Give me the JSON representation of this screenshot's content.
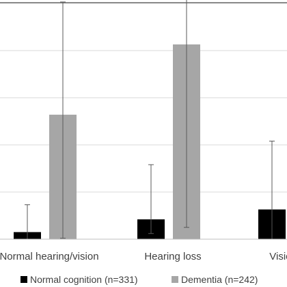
{
  "chart_data": {
    "type": "bar",
    "categories": [
      "Normal hearing/vision",
      "Hearing loss",
      "Vision loss"
    ],
    "series": [
      {
        "name": "Normal cognition (n=331)",
        "color": "#000000",
        "values": [
          0.15,
          0.42,
          0.63
        ],
        "error_low": [
          0.0,
          0.12,
          0.0
        ],
        "error_high": [
          0.73,
          1.58,
          2.08
        ]
      },
      {
        "name": "Dementia (n=242)",
        "color": "#a6a6a6",
        "values": [
          2.64,
          4.13,
          null
        ],
        "error_low": [
          0.02,
          0.25,
          null
        ],
        "error_high": [
          5.03,
          7.43,
          null
        ]
      }
    ],
    "ylim": [
      0,
      7.5
    ],
    "gridlines": [
      1,
      2,
      3,
      4,
      5
    ],
    "grid": true,
    "title": "",
    "xlabel": "",
    "ylabel": "",
    "legend_position": "bottom",
    "colors": {
      "grid": "#d9d9d9",
      "axis": "#bfbfbf",
      "error_bar": "#595959",
      "text": "#404040"
    }
  }
}
